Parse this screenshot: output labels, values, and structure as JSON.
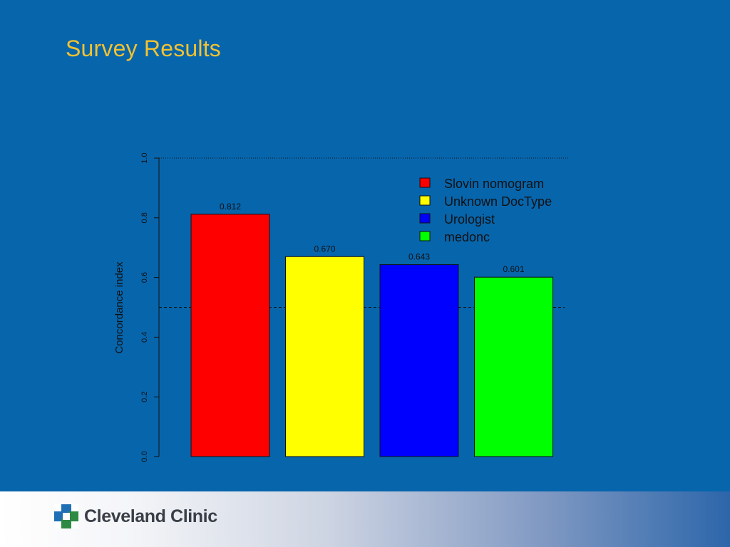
{
  "slide": {
    "title": "Survey Results"
  },
  "footer": {
    "logo_text": "Cleveland Clinic"
  },
  "chart_data": {
    "type": "bar",
    "categories": [
      "Slovin nomogram",
      "Unknown DocType",
      "Urologist",
      "medonc"
    ],
    "values": [
      0.812,
      0.67,
      0.643,
      0.601
    ],
    "value_labels": [
      "0.812",
      "0.670",
      "0.643",
      "0.601"
    ],
    "colors": [
      "#ff0000",
      "#ffff00",
      "#0000ff",
      "#00ff00"
    ],
    "ylabel": "Concordance index",
    "xlabel": "",
    "ylim": [
      0,
      1
    ],
    "yticks": [
      0,
      0.2,
      0.4,
      0.6,
      0.8,
      1.0
    ],
    "ytick_labels": [
      "0.0",
      "0.2",
      "0.4",
      "0.6",
      "0.8",
      "1.0"
    ],
    "reference_lines": [
      {
        "value": 0.5,
        "style": "dashed"
      },
      {
        "value": 1.0,
        "style": "dotted"
      }
    ],
    "legend": {
      "placement": "top-right",
      "entries": [
        "Slovin nomogram",
        "Unknown DocType",
        "Urologist",
        "medonc"
      ]
    }
  }
}
